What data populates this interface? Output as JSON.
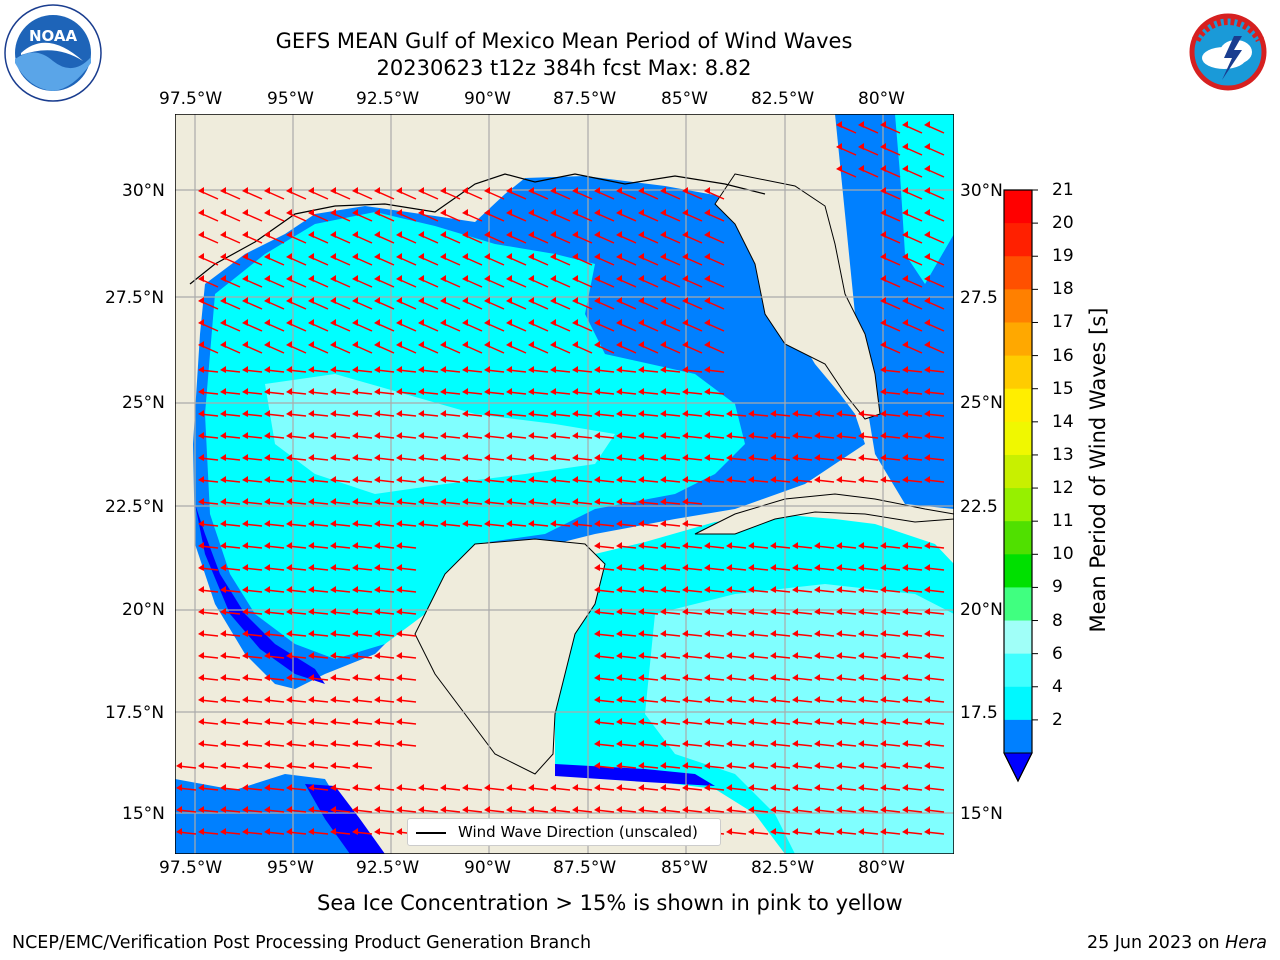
{
  "header": {
    "title_line1": "GEFS MEAN Gulf of Mexico Mean Period of Wind Waves",
    "title_line2": "20230623 t12z 384h fcst   Max: 8.82"
  },
  "logos": {
    "noaa": {
      "text": "NOAA",
      "ring_text": "NATIONAL OCEANIC AND ATMOSPHERIC ADMINISTRATION · U.S. DEPARTMENT OF COMMERCE"
    },
    "nws": {
      "ring_text": "NATIONAL WEATHER SERVICE"
    }
  },
  "map": {
    "lon_labels": [
      "97.5°W",
      "95°W",
      "92.5°W",
      "90°W",
      "87.5°W",
      "85°W",
      "82.5°W",
      "80°W"
    ],
    "lat_labels": [
      "30°N",
      "27.5°N",
      "25°N",
      "22.5°N",
      "20°N",
      "17.5°N",
      "15°N"
    ],
    "lat_labels_right": [
      "30°N",
      "27.5",
      "25°N",
      "22.5",
      "20°N",
      "17.5",
      "15°N"
    ],
    "legend_label": "Wind Wave Direction (unscaled)",
    "colors": {
      "land": "#efecdc",
      "shallow_water": "#0080ff",
      "deep_blue": "#0000ff",
      "mid_water": "#00ffff",
      "light_water": "#80ffff",
      "arrow": "#ff0000"
    }
  },
  "colorbar": {
    "label": "Mean Period of Wind Waves [s]",
    "ticks": [
      "21",
      "20",
      "19",
      "18",
      "17",
      "16",
      "15",
      "14",
      "13",
      "12",
      "11",
      "10",
      "9",
      "8",
      "6",
      "4",
      "2"
    ],
    "colors": [
      "#ff0000",
      "#ff2000",
      "#ff5000",
      "#ff8000",
      "#ffa800",
      "#ffcc00",
      "#ffee00",
      "#f0f800",
      "#c8f000",
      "#96f000",
      "#50e000",
      "#00e000",
      "#40ff80",
      "#a0fff8",
      "#40ffff",
      "#00f8ff",
      "#0080ff"
    ],
    "extend_color": "#0000ff"
  },
  "notes": {
    "sea_ice": "Sea Ice Concentration > 15% is shown in pink to yellow"
  },
  "footer": {
    "left": "NCEP/EMC/Verification Post Processing Product Generation Branch",
    "date": "25 Jun 2023 on ",
    "host": "Hera"
  }
}
